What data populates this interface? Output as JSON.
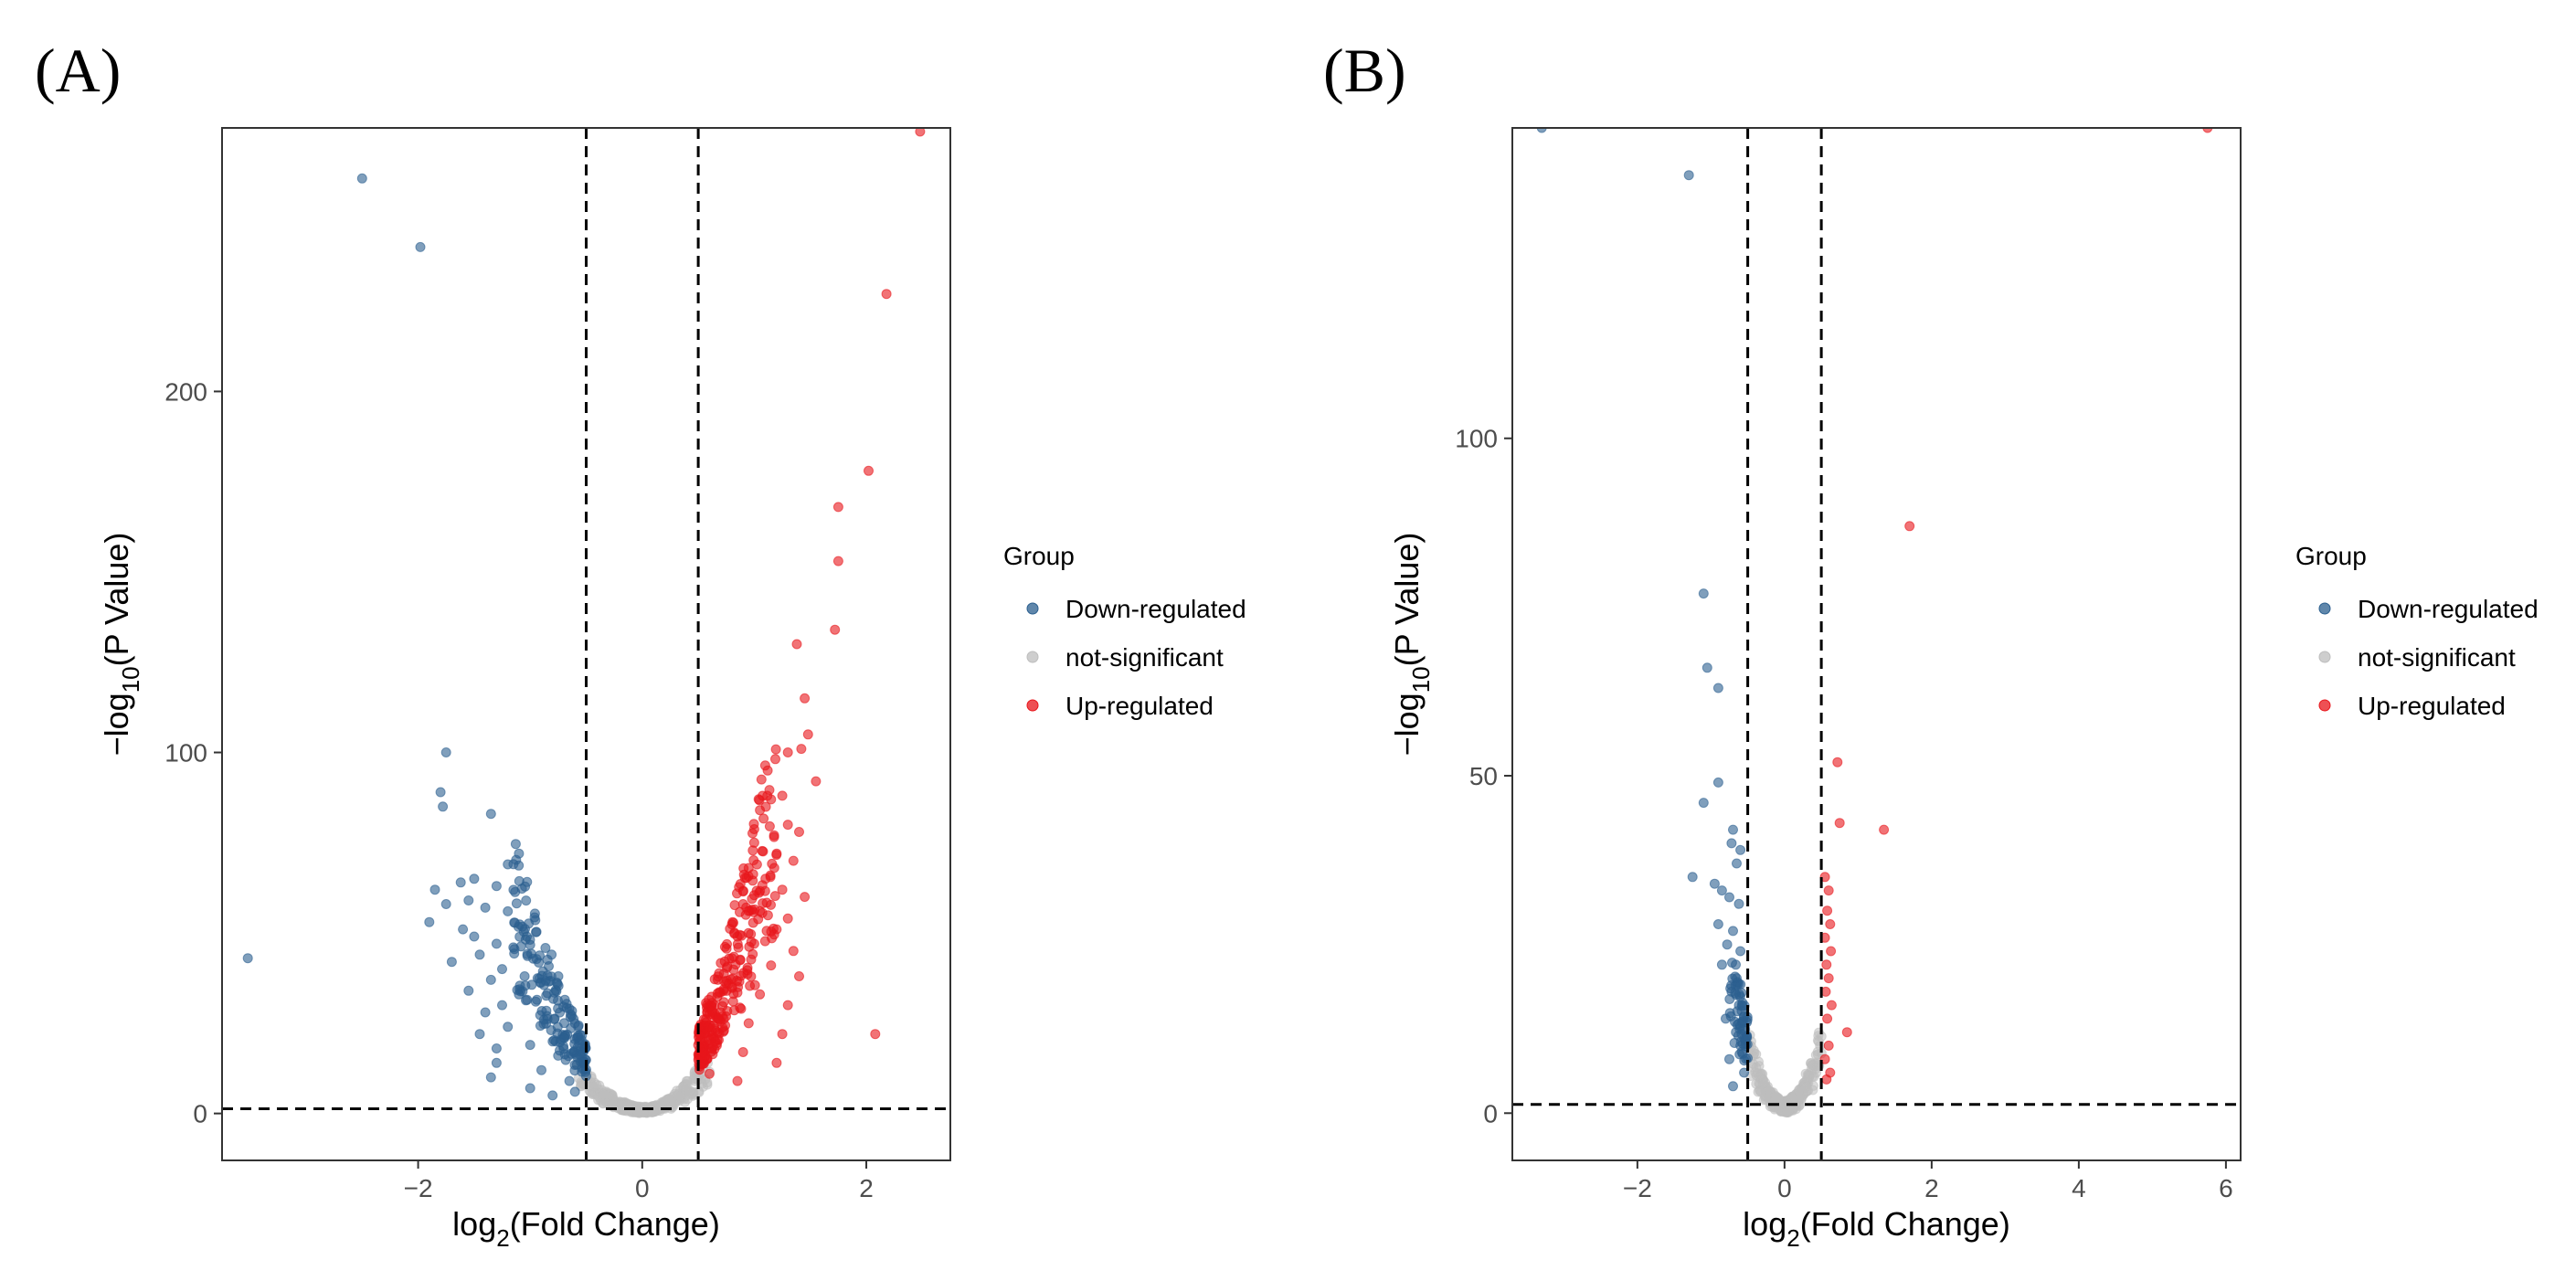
{
  "chart_data": [
    {
      "panel": "(A)",
      "type": "scatter",
      "title": "",
      "xlabel_prefix": "log",
      "xlabel_sub": "2",
      "xlabel_suffix": "(Fold Change)",
      "ylabel_prefix": "−log",
      "ylabel_sub": "10",
      "ylabel_suffix": "(P Value)",
      "xlim": [
        -3.75,
        2.75
      ],
      "ylim": [
        -13,
        273
      ],
      "xticks": [
        -2,
        0,
        2
      ],
      "yticks": [
        0,
        100,
        200
      ],
      "vlines": [
        -0.5,
        0.5
      ],
      "hline": 1.3,
      "legend": {
        "title": "Group",
        "entries": [
          "Down-regulated",
          "not-significant",
          "Up-regulated"
        ],
        "colors": [
          "#2b5f8f",
          "#bdbdbd",
          "#e8151b"
        ]
      },
      "series": [
        {
          "name": "Down-regulated",
          "points": [
            [
              -2.5,
              259
            ],
            [
              -1.98,
              240
            ],
            [
              -3.52,
              43
            ],
            [
              -1.75,
              100
            ],
            [
              -1.8,
              89
            ],
            [
              -1.78,
              85
            ],
            [
              -1.35,
              83
            ],
            [
              -1.1,
              72
            ],
            [
              -1.2,
              69
            ],
            [
              -1.5,
              65
            ],
            [
              -1.62,
              64
            ],
            [
              -1.3,
              63
            ],
            [
              -1.85,
              62
            ],
            [
              -1.55,
              59
            ],
            [
              -1.75,
              58
            ],
            [
              -1.4,
              57
            ],
            [
              -1.2,
              56
            ],
            [
              -1.9,
              53
            ],
            [
              -1.6,
              51
            ],
            [
              -1.5,
              49
            ],
            [
              -1.3,
              47
            ],
            [
              -1.15,
              46
            ],
            [
              -1.45,
              44
            ],
            [
              -1.7,
              42
            ],
            [
              -1.25,
              40
            ],
            [
              -1.05,
              38
            ],
            [
              -1.35,
              37
            ],
            [
              -1.55,
              34
            ],
            [
              -1.1,
              33
            ],
            [
              -0.95,
              31
            ],
            [
              -1.25,
              30
            ],
            [
              -1.4,
              28
            ],
            [
              -0.85,
              27
            ],
            [
              -1.2,
              24
            ],
            [
              -1.45,
              22
            ],
            [
              -0.7,
              21
            ],
            [
              -1.0,
              19
            ],
            [
              -1.3,
              18
            ],
            [
              -0.75,
              16
            ],
            [
              -1.3,
              14
            ],
            [
              -0.9,
              12
            ],
            [
              -1.35,
              10
            ],
            [
              -0.65,
              9
            ],
            [
              -1.0,
              7
            ],
            [
              -0.6,
              6
            ],
            [
              -0.8,
              5
            ]
          ],
          "cloud": {
            "x_from": -1.15,
            "x_to": -0.5,
            "count": 170,
            "y_base": 3,
            "y_slope": 42
          }
        },
        {
          "name": "not-significant",
          "cloud": {
            "x_from": -0.65,
            "x_to": 0.65,
            "count": 420,
            "y_base": 0,
            "y_slope": 34
          }
        },
        {
          "name": "Up-regulated",
          "points": [
            [
              2.48,
              272
            ],
            [
              2.18,
              227
            ],
            [
              2.02,
              178
            ],
            [
              1.75,
              168
            ],
            [
              1.75,
              153
            ],
            [
              1.72,
              134
            ],
            [
              1.38,
              130
            ],
            [
              1.45,
              115
            ],
            [
              1.48,
              105
            ],
            [
              1.42,
              101
            ],
            [
              1.3,
              100
            ],
            [
              1.12,
              95
            ],
            [
              1.55,
              92
            ],
            [
              1.25,
              88
            ],
            [
              1.15,
              87
            ],
            [
              1.05,
              84
            ],
            [
              1.3,
              80
            ],
            [
              1.4,
              78
            ],
            [
              1.0,
              75
            ],
            [
              1.2,
              72
            ],
            [
              1.35,
              70
            ],
            [
              0.95,
              68
            ],
            [
              1.1,
              65
            ],
            [
              1.25,
              62
            ],
            [
              1.45,
              60
            ],
            [
              0.9,
              58
            ],
            [
              1.05,
              56
            ],
            [
              1.3,
              54
            ],
            [
              1.2,
              51
            ],
            [
              0.85,
              49
            ],
            [
              1.0,
              47
            ],
            [
              1.35,
              45
            ],
            [
              0.8,
              43
            ],
            [
              1.15,
              41
            ],
            [
              1.4,
              38
            ],
            [
              0.75,
              36
            ],
            [
              1.05,
              33
            ],
            [
              1.3,
              30
            ],
            [
              0.7,
              28
            ],
            [
              0.95,
              25
            ],
            [
              1.25,
              22
            ],
            [
              0.65,
              20
            ],
            [
              0.9,
              17
            ],
            [
              1.2,
              14
            ],
            [
              0.6,
              11
            ],
            [
              2.08,
              22
            ],
            [
              0.85,
              9
            ]
          ],
          "cloud": {
            "x_from": 0.5,
            "x_to": 1.2,
            "count": 260,
            "y_base": 3,
            "y_slope": 55
          }
        }
      ]
    },
    {
      "panel": "(B)",
      "type": "scatter",
      "title": "",
      "xlabel_prefix": "log",
      "xlabel_sub": "2",
      "xlabel_suffix": "(Fold Change)",
      "ylabel_prefix": "−log",
      "ylabel_sub": "10",
      "ylabel_suffix": "(P Value)",
      "xlim": [
        -3.7,
        6.2
      ],
      "ylim": [
        -7,
        146
      ],
      "xticks": [
        -2,
        0,
        2,
        4,
        6
      ],
      "yticks": [
        0,
        50,
        100
      ],
      "vlines": [
        -0.5,
        0.5
      ],
      "hline": 1.3,
      "legend": {
        "title": "Group",
        "entries": [
          "Down-regulated",
          "not-significant",
          "Up-regulated"
        ],
        "colors": [
          "#2b5f8f",
          "#bdbdbd",
          "#e8151b"
        ]
      },
      "series": [
        {
          "name": "Down-regulated",
          "points": [
            [
              -3.3,
              146
            ],
            [
              -1.3,
              139
            ],
            [
              -1.1,
              77
            ],
            [
              -1.05,
              66
            ],
            [
              -0.9,
              63
            ],
            [
              -0.9,
              49
            ],
            [
              -1.1,
              46
            ],
            [
              -0.7,
              42
            ],
            [
              -0.72,
              40
            ],
            [
              -0.6,
              39
            ],
            [
              -0.65,
              37
            ],
            [
              -1.25,
              35
            ],
            [
              -0.95,
              34
            ],
            [
              -0.85,
              33
            ],
            [
              -0.75,
              32
            ],
            [
              -0.62,
              31
            ],
            [
              -0.9,
              28
            ],
            [
              -0.7,
              27
            ],
            [
              -0.78,
              25
            ],
            [
              -0.6,
              24
            ],
            [
              -0.85,
              22
            ],
            [
              -0.65,
              20
            ],
            [
              -0.72,
              18
            ],
            [
              -0.58,
              16
            ],
            [
              -0.8,
              14
            ],
            [
              -0.66,
              12
            ],
            [
              -0.6,
              10
            ],
            [
              -0.75,
              8
            ],
            [
              -0.55,
              6
            ],
            [
              -0.7,
              4
            ]
          ],
          "cloud": {
            "x_from": -0.75,
            "x_to": -0.5,
            "count": 60,
            "y_base": 2,
            "y_slope": 30
          }
        },
        {
          "name": "not-significant",
          "cloud": {
            "x_from": -0.55,
            "x_to": 0.55,
            "count": 320,
            "y_base": 0,
            "y_slope": 36
          }
        },
        {
          "name": "Up-regulated",
          "points": [
            [
              5.75,
              146
            ],
            [
              1.7,
              87
            ],
            [
              0.72,
              52
            ],
            [
              0.75,
              43
            ],
            [
              1.35,
              42
            ],
            [
              0.55,
              35
            ],
            [
              0.6,
              33
            ],
            [
              0.58,
              30
            ],
            [
              0.62,
              28
            ],
            [
              0.55,
              26
            ],
            [
              0.63,
              24
            ],
            [
              0.57,
              22
            ],
            [
              0.6,
              20
            ],
            [
              0.56,
              18
            ],
            [
              0.64,
              16
            ],
            [
              0.58,
              14
            ],
            [
              0.85,
              12
            ],
            [
              0.6,
              10
            ],
            [
              0.55,
              8
            ],
            [
              0.62,
              6
            ],
            [
              0.57,
              5
            ]
          ]
        }
      ]
    }
  ]
}
